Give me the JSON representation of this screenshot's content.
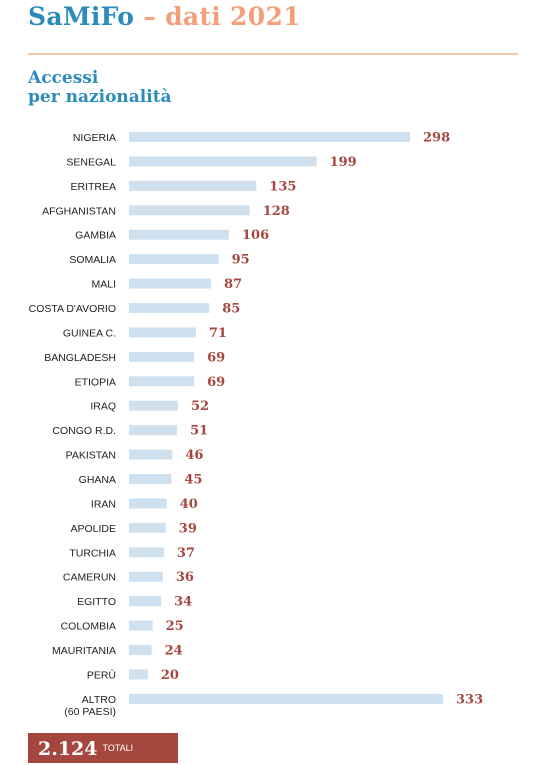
{
  "header": {
    "brand": "SaMiFo",
    "separator": "–",
    "subtitle": "dati 2021"
  },
  "section": {
    "title_line1": "Accessi",
    "title_line2": "per nazionalità"
  },
  "colors": {
    "bar": "#cfe0ef",
    "value_text": "#a5473f",
    "brand_blue": "#2c8bbd",
    "accent_orange": "#f3a07a"
  },
  "chart_data": {
    "type": "bar",
    "orientation": "horizontal",
    "title": "Accessi per nazionalità",
    "categories": [
      "NIGERIA",
      "SENEGAL",
      "ERITREA",
      "AFGHANISTAN",
      "GAMBIA",
      "SOMALIA",
      "MALI",
      "COSTA D'AVORIO",
      "GUINEA C.",
      "BANGLADESH",
      "ETIOPIA",
      "IRAQ",
      "CONGO R.D.",
      "PAKISTAN",
      "GHANA",
      "IRAN",
      "APOLIDE",
      "TURCHIA",
      "CAMERUN",
      "EGITTO",
      "COLOMBIA",
      "MAURITANIA",
      "PERÙ",
      "ALTRO"
    ],
    "category_notes": [
      "",
      "",
      "",
      "",
      "",
      "",
      "",
      "",
      "",
      "",
      "",
      "",
      "",
      "",
      "",
      "",
      "",
      "",
      "",
      "",
      "",
      "",
      "",
      "(60 PAESI)"
    ],
    "values": [
      298,
      199,
      135,
      128,
      106,
      95,
      87,
      85,
      71,
      69,
      69,
      52,
      51,
      46,
      45,
      40,
      39,
      37,
      36,
      34,
      25,
      24,
      20,
      333
    ],
    "grid": false,
    "legend": "none"
  },
  "total": {
    "value": "2.124",
    "label": "TOTALI"
  }
}
